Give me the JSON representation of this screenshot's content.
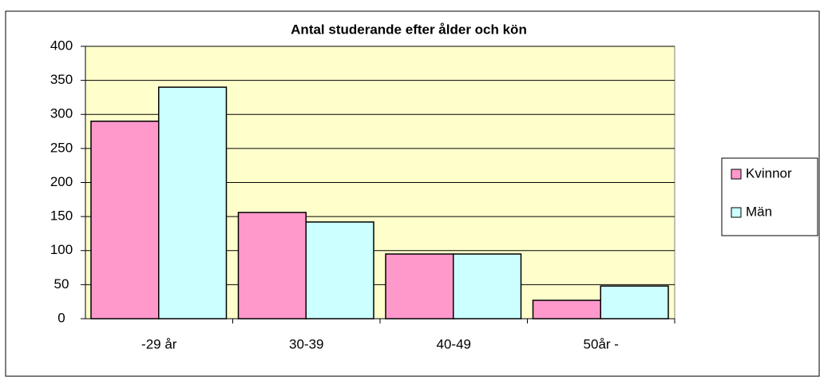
{
  "chart_data": {
    "type": "bar",
    "title": "Antal studerande efter ålder och kön",
    "categories": [
      "-29 år",
      "30-39",
      "40-49",
      "50år -"
    ],
    "series": [
      {
        "name": "Kvinnor",
        "color": "#ff99cc",
        "values": [
          290,
          156,
          95,
          27
        ]
      },
      {
        "name": "Män",
        "color": "#ccffff",
        "values": [
          340,
          142,
          95,
          48
        ]
      }
    ],
    "ylim": [
      0,
      400
    ],
    "yticks": [
      0,
      50,
      100,
      150,
      200,
      250,
      300,
      350,
      400
    ],
    "grid": true,
    "legend": "right"
  }
}
